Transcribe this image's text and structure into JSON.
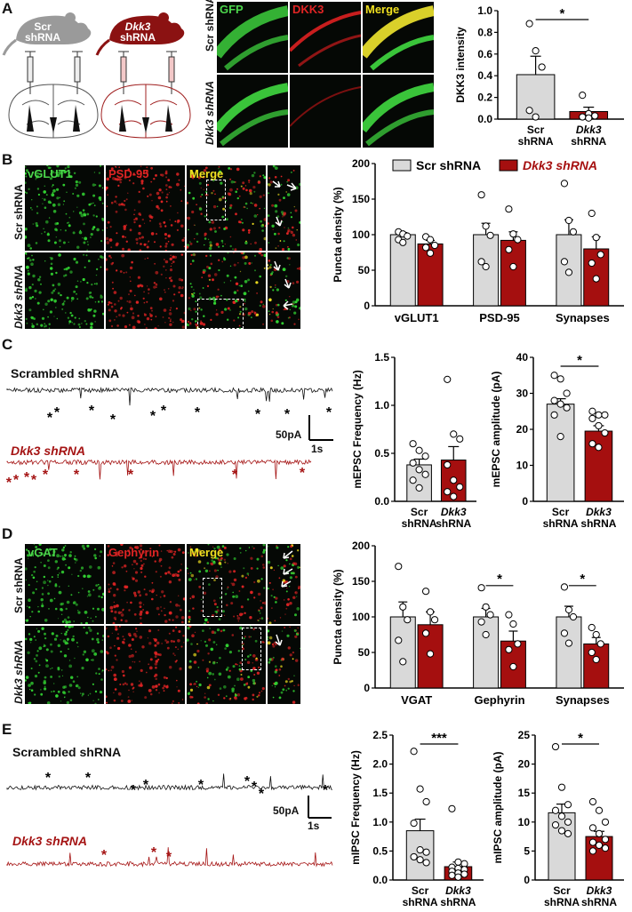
{
  "panels": {
    "A": "A",
    "B": "B",
    "C": "C",
    "D": "D",
    "E": "E"
  },
  "colors": {
    "scr": "#d9d9d9",
    "dkk3": "#a50f0f",
    "gfp": "#4cd64c",
    "red": "#e02424",
    "merge": "#f0e020",
    "trace_black": "#111111",
    "trace_red": "#a51414"
  },
  "panelA": {
    "mouse_scr": [
      "Scr",
      "shRNA"
    ],
    "mouse_dkk3": [
      "Dkk3",
      "shRNA"
    ],
    "channels": [
      "GFP",
      "DKK3",
      "Merge"
    ],
    "rows": [
      "Scr shRNA",
      "Dkk3 shRNA"
    ]
  },
  "panelB": {
    "channels": [
      "vGLUT1",
      "PSD-95",
      "Merge"
    ],
    "rows": [
      "Scr shRNA",
      "Dkk3 shRNA"
    ]
  },
  "panelC": {
    "trace1": "Scrambled shRNA",
    "trace2": "Dkk3 shRNA",
    "scale_y": "50pA",
    "scale_x": "1s"
  },
  "panelD": {
    "channels": [
      "vGAT",
      "Gephyrin",
      "Merge"
    ],
    "rows": [
      "Scr shRNA",
      "Dkk3 shRNA"
    ]
  },
  "panelE": {
    "trace1": "Scrambled shRNA",
    "trace2": "Dkk3 shRNA",
    "scale_y": "50pA",
    "scale_x": "1s"
  },
  "chart_data": [
    {
      "id": "A_dkk3",
      "type": "bar",
      "ylabel": "DKK3 intensity",
      "ylim": [
        0,
        1.0
      ],
      "yticks": [
        0.0,
        0.2,
        0.4,
        0.6,
        0.8,
        1.0
      ],
      "categories": [
        [
          "Scr",
          "shRNA"
        ],
        [
          "Dkk3",
          "shRNA"
        ]
      ],
      "values": [
        0.41,
        0.07
      ],
      "errors": [
        0.17,
        0.04
      ],
      "points": [
        [
          0.88,
          0.63,
          0.48,
          0.08,
          0.02
        ],
        [
          0.22,
          0.05,
          0.03,
          0.02,
          0.01
        ]
      ],
      "sig": "*"
    },
    {
      "id": "B_puncta",
      "type": "bar",
      "ylabel": "Puncta density (%)",
      "ylim": [
        0,
        200
      ],
      "yticks": [
        0,
        50,
        100,
        150,
        200
      ],
      "groups": [
        "vGLUT1",
        "PSD-95",
        "Synapses"
      ],
      "series": [
        {
          "name": "Scr shRNA",
          "values": [
            100,
            100,
            100
          ],
          "errors": [
            3,
            16,
            21
          ],
          "points": [
            [
              104,
              101,
              98,
              93,
              89
            ],
            [
              156,
              112,
              99,
              62,
              55
            ],
            [
              172,
              120,
              104,
              62,
              47
            ]
          ]
        },
        {
          "name": "Dkk3 shRNA",
          "values": [
            87,
            92,
            80
          ],
          "errors": [
            5,
            12,
            17
          ],
          "points": [
            [
              97,
              93,
              85,
              82,
              74
            ],
            [
              136,
              101,
              93,
              79,
              55
            ],
            [
              130,
              96,
              72,
              60,
              38
            ]
          ]
        }
      ],
      "legend": "top"
    },
    {
      "id": "C_freq",
      "type": "bar",
      "ylabel": "mEPSC Frequency (Hz)",
      "ylim": [
        0,
        1.5
      ],
      "yticks": [
        0.0,
        0.5,
        1.0,
        1.5
      ],
      "categories": [
        [
          "Scr",
          "shRNA"
        ],
        [
          "Dkk3",
          "shRNA"
        ]
      ],
      "values": [
        0.38,
        0.43
      ],
      "errors": [
        0.06,
        0.14
      ],
      "points": [
        [
          0.6,
          0.53,
          0.47,
          0.4,
          0.33,
          0.28,
          0.22,
          0.14
        ],
        [
          1.27,
          0.7,
          0.65,
          0.38,
          0.22,
          0.15,
          0.1,
          0.05
        ]
      ]
    },
    {
      "id": "C_amp",
      "type": "bar",
      "ylabel": "mEPSC amplitude (pA)",
      "ylim": [
        0,
        40
      ],
      "yticks": [
        0,
        10,
        20,
        30,
        40
      ],
      "categories": [
        [
          "Scr",
          "shRNA"
        ],
        [
          "Dkk3",
          "shRNA"
        ]
      ],
      "values": [
        27,
        19.5
      ],
      "errors": [
        1.5,
        1.5
      ],
      "points": [
        [
          35,
          34,
          30,
          28,
          27,
          26,
          24,
          18
        ],
        [
          25,
          24,
          24,
          23,
          21,
          19,
          16,
          15
        ]
      ],
      "sig": "*"
    },
    {
      "id": "D_puncta",
      "type": "bar",
      "ylabel": "Puncta density (%)",
      "ylim": [
        0,
        200
      ],
      "yticks": [
        0,
        50,
        100,
        150,
        200
      ],
      "groups": [
        "VGAT",
        "Gephyrin",
        "Synapses"
      ],
      "series": [
        {
          "name": "Scr shRNA",
          "values": [
            100,
            100,
            100
          ],
          "errors": [
            21,
            12,
            15
          ],
          "points": [
            [
              171,
              114,
              96,
              67,
              37
            ],
            [
              141,
              114,
              103,
              93,
              75
            ],
            [
              142,
              110,
              100,
              77,
              63
            ]
          ]
        },
        {
          "name": "Dkk3 shRNA",
          "values": [
            89,
            66,
            62
          ],
          "errors": [
            18,
            14,
            9
          ],
          "points": [
            [
              136,
              107,
              96,
              77,
              48
            ],
            [
              103,
              90,
              62,
              54,
              30
            ],
            [
              85,
              75,
              62,
              50,
              40
            ]
          ]
        }
      ],
      "sigs": [
        null,
        "*",
        "*"
      ]
    },
    {
      "id": "E_freq",
      "type": "bar",
      "ylabel": "mIPSC Frequency (Hz)",
      "ylim": [
        0,
        2.5
      ],
      "yticks": [
        0.0,
        0.5,
        1.0,
        1.5,
        2.0,
        2.5
      ],
      "categories": [
        [
          "Scr",
          "shRNA"
        ],
        [
          "Dkk3",
          "shRNA"
        ]
      ],
      "values": [
        0.85,
        0.23
      ],
      "errors": [
        0.2,
        0.08
      ],
      "points": [
        [
          2.22,
          1.57,
          1.35,
          0.98,
          0.52,
          0.48,
          0.4,
          0.35,
          0.3
        ],
        [
          1.23,
          0.31,
          0.28,
          0.22,
          0.2,
          0.18,
          0.15,
          0.12,
          0.1,
          0.08,
          0.05
        ]
      ],
      "sig": "***"
    },
    {
      "id": "E_amp",
      "type": "bar",
      "ylabel": "mIPSC amplitude (pA)",
      "ylim": [
        0,
        25
      ],
      "yticks": [
        0,
        5,
        10,
        15,
        20,
        25
      ],
      "categories": [
        [
          "Scr",
          "shRNA"
        ],
        [
          "Dkk3",
          "shRNA"
        ]
      ],
      "values": [
        11.6,
        7.5
      ],
      "errors": [
        1.5,
        0.9
      ],
      "points": [
        [
          23,
          16,
          13,
          12,
          11,
          10,
          9.5,
          8.5,
          8
        ],
        [
          13.5,
          12,
          10,
          9,
          8,
          7,
          6.5,
          6,
          5.5,
          5
        ]
      ],
      "sig": "*"
    }
  ]
}
